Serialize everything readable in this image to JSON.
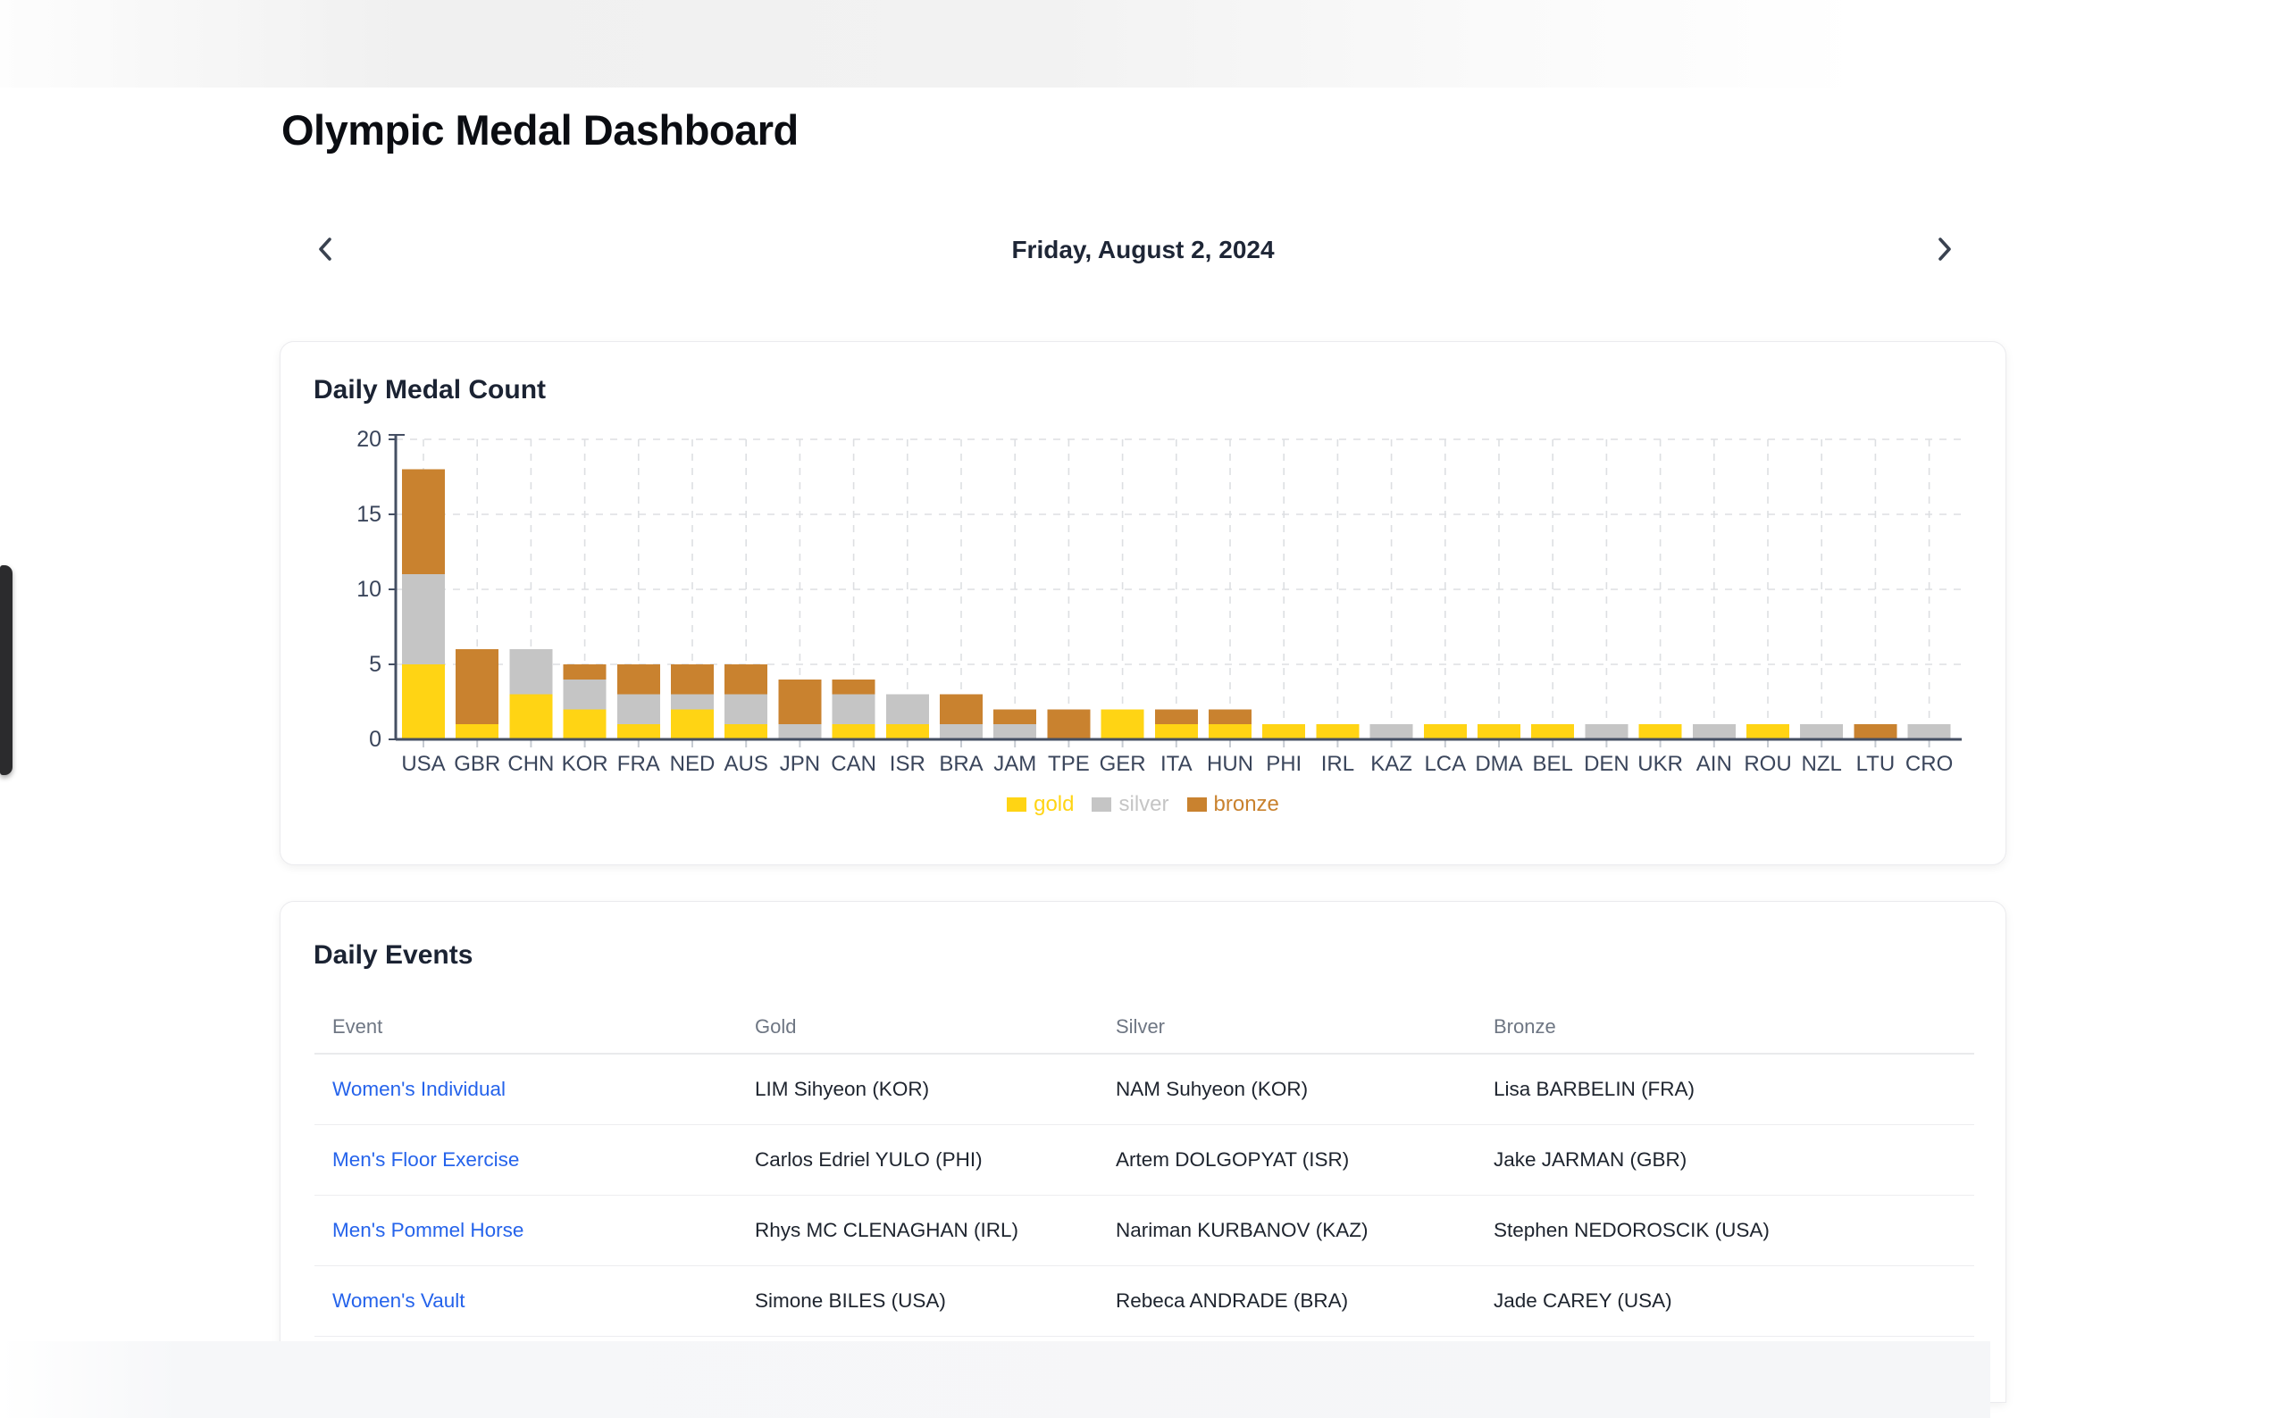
{
  "page": {
    "title": "Olympic Medal Dashboard"
  },
  "date_nav": {
    "date": "Friday, August 2, 2024",
    "prev_label": "previous day",
    "next_label": "next day"
  },
  "medal_card": {
    "title": "Daily Medal Count"
  },
  "chart_data": {
    "type": "bar",
    "stacked": true,
    "title": "Daily Medal Count",
    "categories": [
      "USA",
      "GBR",
      "CHN",
      "KOR",
      "FRA",
      "NED",
      "AUS",
      "JPN",
      "CAN",
      "ISR",
      "BRA",
      "JAM",
      "TPE",
      "GER",
      "ITA",
      "HUN",
      "PHI",
      "IRL",
      "KAZ",
      "LCA",
      "DMA",
      "BEL",
      "DEN",
      "UKR",
      "AIN",
      "ROU",
      "NZL",
      "LTU",
      "CRO"
    ],
    "series": [
      {
        "name": "gold",
        "color": "#FFD414",
        "values": [
          5,
          1,
          3,
          2,
          1,
          2,
          1,
          0,
          1,
          1,
          0,
          0,
          0,
          2,
          1,
          1,
          1,
          1,
          0,
          1,
          1,
          1,
          0,
          1,
          0,
          1,
          0,
          0,
          0
        ]
      },
      {
        "name": "silver",
        "color": "#C5C5C5",
        "values": [
          6,
          0,
          3,
          2,
          2,
          1,
          2,
          1,
          2,
          2,
          1,
          1,
          0,
          0,
          0,
          0,
          0,
          0,
          1,
          0,
          0,
          0,
          1,
          0,
          1,
          0,
          1,
          0,
          1
        ]
      },
      {
        "name": "bronze",
        "color": "#C9822F",
        "values": [
          7,
          5,
          0,
          1,
          2,
          2,
          2,
          3,
          1,
          0,
          2,
          1,
          2,
          0,
          1,
          1,
          0,
          0,
          0,
          0,
          0,
          0,
          0,
          0,
          0,
          0,
          0,
          1,
          0
        ]
      }
    ],
    "ylim": [
      0,
      20
    ],
    "yticks": [
      0,
      5,
      10,
      15,
      20
    ],
    "grid": true,
    "legend_position": "bottom"
  },
  "events_card": {
    "title": "Daily Events",
    "columns": [
      "Event",
      "Gold",
      "Silver",
      "Bronze"
    ],
    "rows": [
      {
        "event": "Women's Individual",
        "gold": "LIM Sihyeon (KOR)",
        "silver": "NAM Suhyeon (KOR)",
        "bronze": "Lisa BARBELIN (FRA)"
      },
      {
        "event": "Men's Floor Exercise",
        "gold": "Carlos Edriel YULO (PHI)",
        "silver": "Artem DOLGOPYAT (ISR)",
        "bronze": "Jake JARMAN (GBR)"
      },
      {
        "event": "Men's Pommel Horse",
        "gold": "Rhys MC CLENAGHAN (IRL)",
        "silver": "Nariman KURBANOV (KAZ)",
        "bronze": "Stephen NEDOROSCIK (USA)"
      },
      {
        "event": "Women's Vault",
        "gold": "Simone BILES (USA)",
        "silver": "Rebeca ANDRADE (BRA)",
        "bronze": "Jade CAREY (USA)"
      }
    ]
  },
  "colors": {
    "gold": "#FFD414",
    "silver": "#C5C5C5",
    "bronze": "#C9822F",
    "link": "#2563eb",
    "axis": "#454f63",
    "grid": "#dddfe2",
    "label": "#3a455b"
  }
}
